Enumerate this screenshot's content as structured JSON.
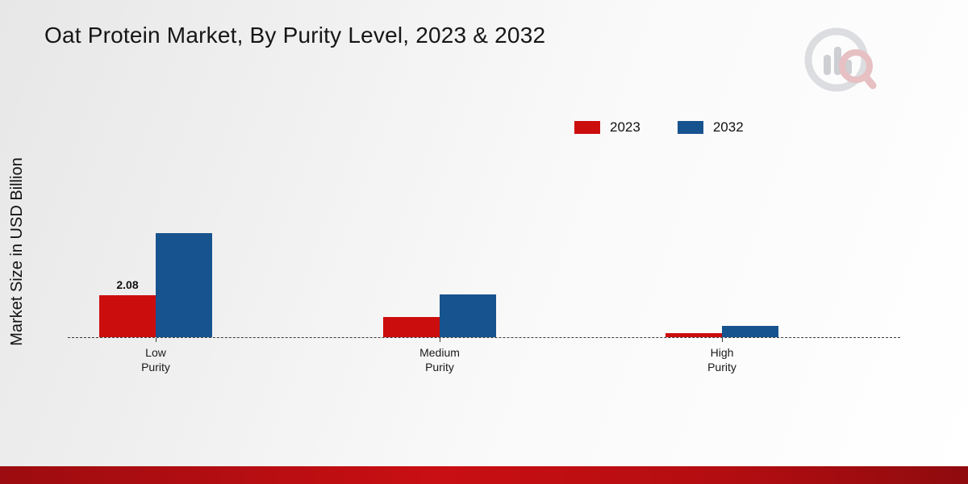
{
  "title": "Oat Protein Market, By Purity Level, 2023 & 2032",
  "y_axis_label": "Market Size in USD Billion",
  "legend": [
    {
      "label": "2023",
      "color": "#cc0d0e"
    },
    {
      "label": "2032",
      "color": "#17538f"
    }
  ],
  "logo_icon": "bar-chart-magnifier-logo",
  "chart_data": {
    "type": "bar",
    "title": "Oat Protein Market, By Purity Level, 2023 & 2032",
    "ylabel": "Market Size in USD Billion",
    "categories": [
      "Low Purity",
      "Medium Purity",
      "High Purity"
    ],
    "series": [
      {
        "name": "2023",
        "color": "#cc0d0e",
        "values": [
          2.08,
          1.0,
          0.2
        ]
      },
      {
        "name": "2032",
        "color": "#17538f",
        "values": [
          5.1,
          2.1,
          0.55
        ]
      }
    ],
    "annotations": [
      {
        "series_index": 0,
        "category_index": 0,
        "text": "2.08"
      }
    ],
    "ylim": [
      0,
      5.5
    ],
    "grid": false,
    "baseline_style": "dashed",
    "legend_position": "top-right"
  }
}
